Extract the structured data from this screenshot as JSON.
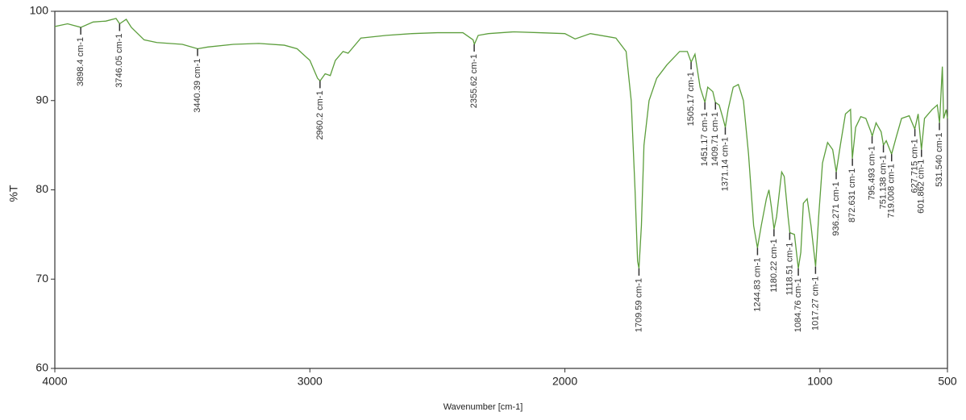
{
  "chart_data": {
    "type": "line",
    "x_label": "Wavenumber [cm-1]",
    "y_label": "%T",
    "xlim": [
      4000,
      500
    ],
    "ylim": [
      60,
      100
    ],
    "xticks": [
      4000,
      3000,
      2000,
      1000,
      500
    ],
    "yticks": [
      60,
      70,
      80,
      90,
      100
    ],
    "x": [
      4000,
      3950,
      3898,
      3850,
      3800,
      3760,
      3746,
      3720,
      3700,
      3650,
      3600,
      3500,
      3440,
      3400,
      3300,
      3200,
      3100,
      3050,
      3000,
      2970,
      2960,
      2940,
      2920,
      2900,
      2870,
      2850,
      2800,
      2700,
      2600,
      2500,
      2400,
      2360,
      2355,
      2340,
      2300,
      2200,
      2100,
      2000,
      1960,
      1900,
      1800,
      1760,
      1740,
      1725,
      1715,
      1709.6,
      1700,
      1690,
      1670,
      1640,
      1600,
      1550,
      1520,
      1505,
      1490,
      1470,
      1451,
      1440,
      1420,
      1410,
      1395,
      1380,
      1371,
      1360,
      1340,
      1320,
      1300,
      1280,
      1260,
      1245,
      1230,
      1210,
      1200,
      1190,
      1180,
      1170,
      1150,
      1140,
      1125,
      1118,
      1100,
      1084.8,
      1075,
      1065,
      1050,
      1035,
      1017,
      1005,
      990,
      970,
      950,
      936,
      920,
      900,
      880,
      873,
      860,
      840,
      820,
      800,
      795,
      780,
      760,
      751,
      740,
      719,
      700,
      680,
      650,
      628,
      615,
      602,
      590,
      560,
      540,
      531,
      520,
      515,
      505,
      500
    ],
    "series": [
      {
        "color": "#5c9e3c",
        "values": [
          98.3,
          98.6,
          98.2,
          98.8,
          98.9,
          99.2,
          98.6,
          99.1,
          98.2,
          96.8,
          96.5,
          96.3,
          95.8,
          96.0,
          96.3,
          96.4,
          96.2,
          95.8,
          94.5,
          92.5,
          92.2,
          93.0,
          92.8,
          94.5,
          95.5,
          95.3,
          97.0,
          97.3,
          97.5,
          97.6,
          97.6,
          96.8,
          96.3,
          97.3,
          97.5,
          97.7,
          97.6,
          97.5,
          96.9,
          97.5,
          97.0,
          95.5,
          90,
          80,
          72,
          71.2,
          76,
          85,
          90,
          92.5,
          94,
          95.5,
          95.5,
          94.3,
          95.2,
          91.5,
          89.8,
          91.5,
          91,
          89.8,
          89.5,
          88,
          87.0,
          89,
          91.5,
          91.8,
          90,
          84,
          76,
          73.5,
          76,
          79,
          80,
          78,
          75.6,
          77,
          82,
          81.5,
          77,
          75.2,
          75,
          71.2,
          73,
          78.5,
          79,
          76,
          71.4,
          77,
          83,
          85.3,
          84.5,
          82,
          85,
          88.5,
          89,
          83.5,
          87,
          88.2,
          88.0,
          86.5,
          86,
          87.5,
          86.5,
          85,
          85.5,
          84,
          86,
          88,
          88.3,
          86.8,
          88.5,
          84.5,
          88,
          89,
          89.5,
          87.5,
          93.8,
          88,
          89,
          88
        ]
      }
    ],
    "annotations": [
      {
        "label": "3898.4 cm-1",
        "x": 3898.4,
        "y": 98.2
      },
      {
        "label": "3746.05 cm-1",
        "x": 3746.05,
        "y": 98.6
      },
      {
        "label": "3440.39 cm-1",
        "x": 3440.39,
        "y": 95.8
      },
      {
        "label": "2960.2 cm-1",
        "x": 2960.2,
        "y": 92.2
      },
      {
        "label": "2355.62 cm-1",
        "x": 2355.62,
        "y": 96.3
      },
      {
        "label": "1709.59 cm-1",
        "x": 1709.59,
        "y": 71.2
      },
      {
        "label": "1505.17 cm-1",
        "x": 1505.17,
        "y": 94.3
      },
      {
        "label": "1451.17 cm-1",
        "x": 1451.17,
        "y": 89.8
      },
      {
        "label": "1409.71 cm-1",
        "x": 1409.71,
        "y": 89.8
      },
      {
        "label": "1371.14 cm-1",
        "x": 1371.14,
        "y": 87.0
      },
      {
        "label": "1244.83 cm-1",
        "x": 1244.83,
        "y": 73.5
      },
      {
        "label": "1180.22 cm-1",
        "x": 1180.22,
        "y": 75.6
      },
      {
        "label": "1118.51 cm-1",
        "x": 1118.51,
        "y": 75.2
      },
      {
        "label": "1084.76 cm-1",
        "x": 1084.76,
        "y": 71.2
      },
      {
        "label": "1017.27 cm-1",
        "x": 1017.27,
        "y": 71.4
      },
      {
        "label": "936.271 cm-1",
        "x": 936.271,
        "y": 82
      },
      {
        "label": "872.631 cm-1",
        "x": 872.631,
        "y": 83.5
      },
      {
        "label": "795.493 cm-1",
        "x": 795.493,
        "y": 86
      },
      {
        "label": "751.138 cm-1",
        "x": 751.138,
        "y": 85
      },
      {
        "label": "719.008 cm-1",
        "x": 719.008,
        "y": 84
      },
      {
        "label": "627.715 cm-1",
        "x": 627.715,
        "y": 86.8
      },
      {
        "label": "601.862 cm-1",
        "x": 601.862,
        "y": 84.5
      },
      {
        "label": "531.540 cm-1",
        "x": 531.54,
        "y": 87.5
      }
    ]
  }
}
